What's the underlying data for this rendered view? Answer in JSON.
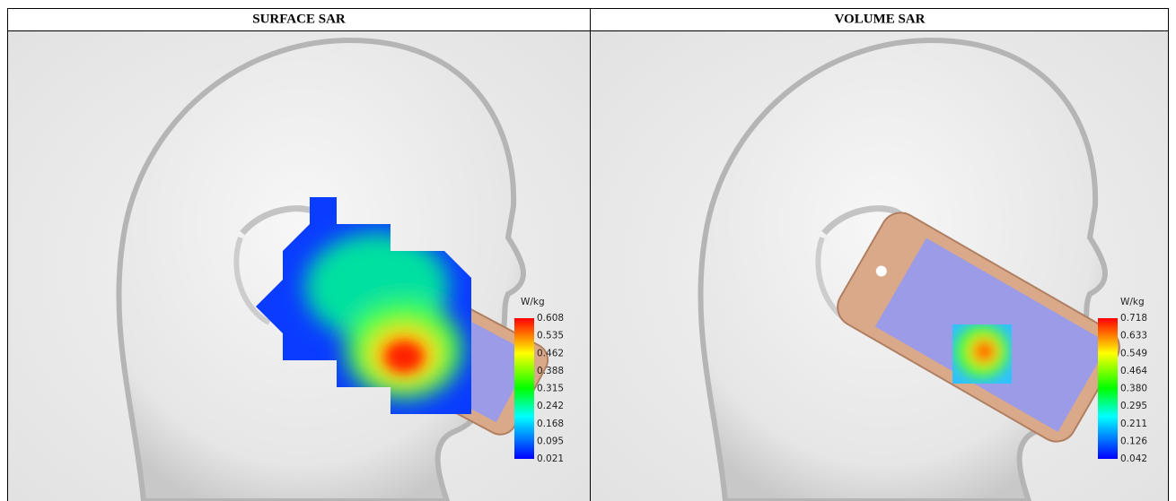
{
  "table": {
    "headers": [
      "SURFACE SAR",
      "VOLUME SAR"
    ]
  },
  "panels": [
    {
      "unit": "W/kg",
      "scale": [
        "0.608",
        "0.535",
        "0.462",
        "0.388",
        "0.315",
        "0.242",
        "0.168",
        "0.095",
        "0.021"
      ]
    },
    {
      "unit": "W/kg",
      "scale": [
        "0.718",
        "0.633",
        "0.549",
        "0.464",
        "0.380",
        "0.295",
        "0.211",
        "0.126",
        "0.042"
      ]
    }
  ]
}
